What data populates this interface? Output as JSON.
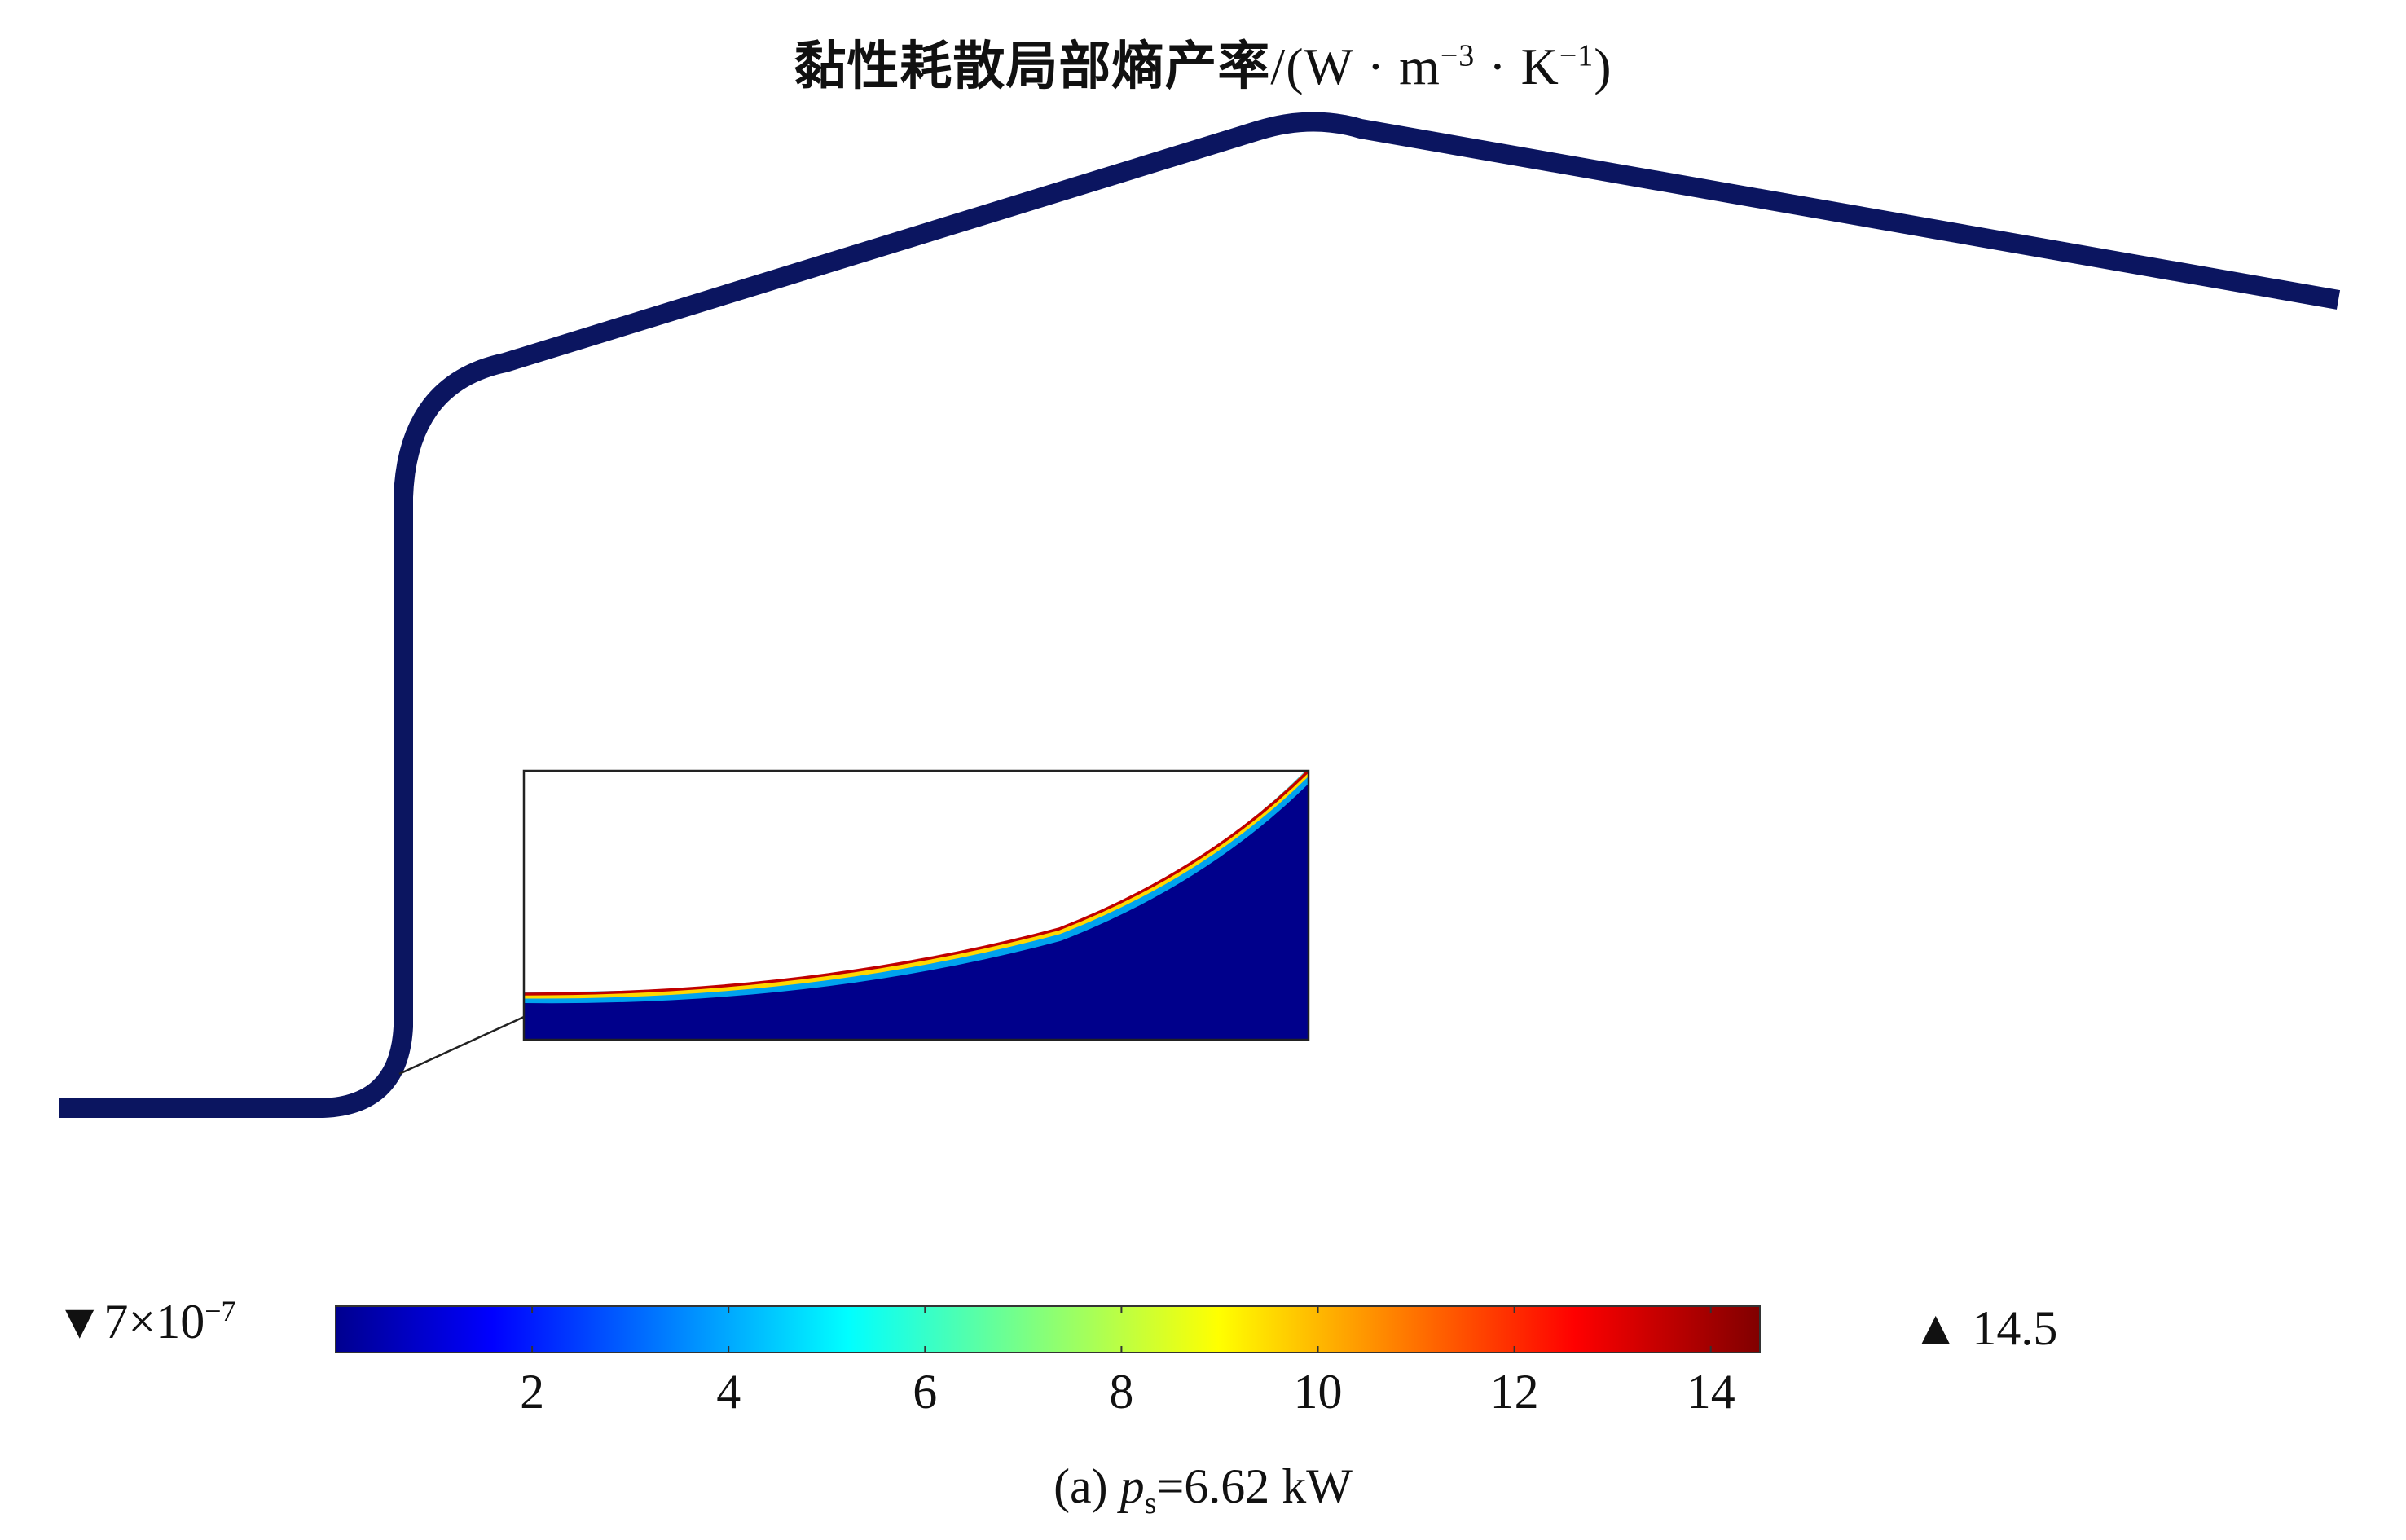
{
  "title": {
    "main": "黏性耗散局部熵产率",
    "unit_prefix": "/(W · m",
    "exp1": "−3",
    "unit_mid": " · K",
    "exp2": "−1",
    "unit_suffix": ")"
  },
  "colorbar": {
    "min_mantissa": "▼7×10",
    "min_exponent": "−7",
    "max_label": "▲ 14.5",
    "ticks": [
      "2",
      "4",
      "6",
      "8",
      "10",
      "12",
      "14"
    ],
    "tick_values": [
      2,
      4,
      6,
      8,
      10,
      12,
      14
    ],
    "range": [
      7e-07,
      14.5
    ],
    "colormap": "jet",
    "colors": [
      "#00008f",
      "#0000ff",
      "#00ffff",
      "#ffff00",
      "#ff0000",
      "#800000"
    ]
  },
  "caption": {
    "prefix": "(a) ",
    "var": "p",
    "sub": "s",
    "value": "=6.62 kW"
  },
  "colors": {
    "tube": "#0b1560",
    "field_low": "#00008b"
  }
}
